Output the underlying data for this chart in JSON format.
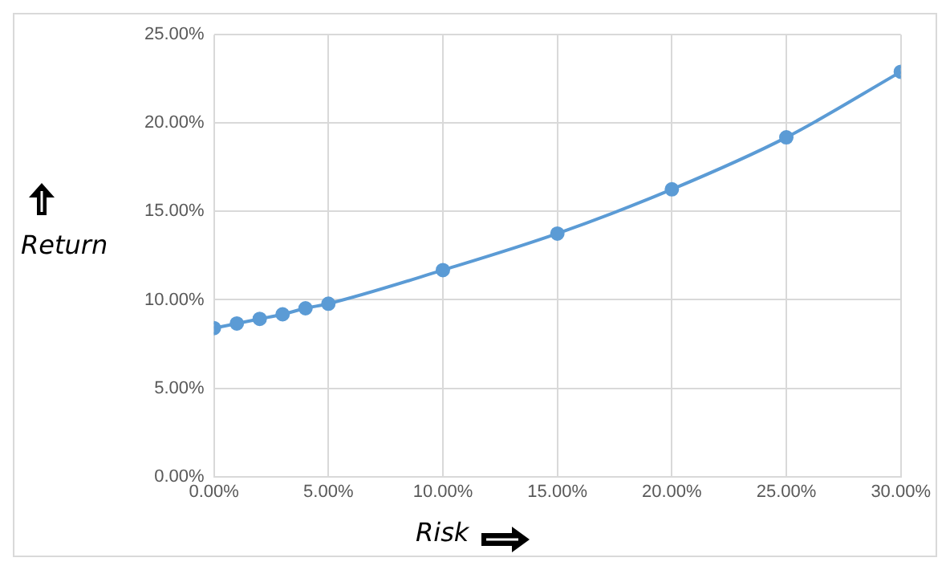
{
  "chart_data": {
    "type": "line",
    "xlabel": "Risk",
    "ylabel": "Return",
    "x": [
      0,
      1,
      2,
      3,
      4,
      5,
      10,
      15,
      20,
      25,
      30
    ],
    "series": [
      {
        "color": "#5b9bd5",
        "values": [
          8.4,
          8.66,
          8.92,
          9.18,
          9.52,
          9.78,
          11.68,
          13.75,
          16.25,
          19.19,
          22.9
        ]
      }
    ],
    "xlim": [
      0,
      30
    ],
    "xticks": [
      {
        "value": 0,
        "label": "0.00%"
      },
      {
        "value": 5,
        "label": "5.00%"
      },
      {
        "value": 10,
        "label": "10.00%"
      },
      {
        "value": 15,
        "label": "15.00%"
      },
      {
        "value": 20,
        "label": "20.00%"
      },
      {
        "value": 25,
        "label": "25.00%"
      },
      {
        "value": 30,
        "label": "30.00%"
      }
    ],
    "ylim": [
      0,
      25
    ],
    "yticks": [
      {
        "value": 0,
        "label": "0.00%"
      },
      {
        "value": 5,
        "label": "5.00%"
      },
      {
        "value": 10,
        "label": "10.00%"
      },
      {
        "value": 15,
        "label": "15.00%"
      },
      {
        "value": 20,
        "label": "20.00%"
      },
      {
        "value": 25,
        "label": "25.00%"
      }
    ],
    "grid": true,
    "legend": false,
    "marker": "circle",
    "line_style": "solid"
  }
}
